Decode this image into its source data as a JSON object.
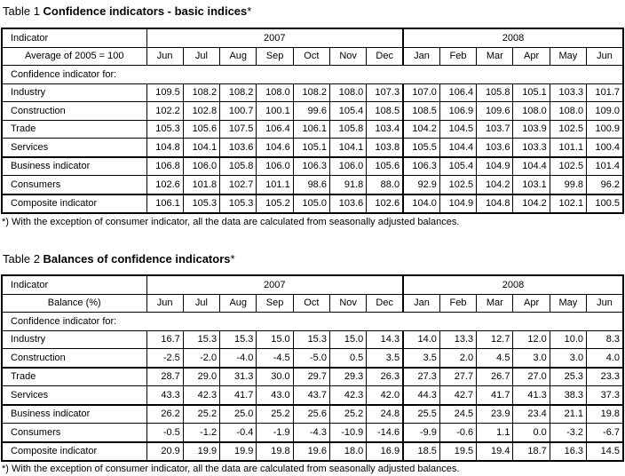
{
  "months": [
    "Jun",
    "Jul",
    "Aug",
    "Sep",
    "Oct",
    "Nov",
    "Dec",
    "Jan",
    "Feb",
    "Mar",
    "Apr",
    "May",
    "Jun"
  ],
  "years": [
    "2007",
    "2008"
  ],
  "table1": {
    "title_prefix": "Table 1 ",
    "title_bold": "Confidence indicators  - basic indices",
    "title_suffix": "*",
    "header_label": "Indicator",
    "sub_label": "Average of 2005 = 100",
    "group_label": "Confidence indicator for:",
    "rows": [
      {
        "label": "Industry",
        "values": [
          "109.5",
          "108.2",
          "108.2",
          "108.0",
          "108.2",
          "108.0",
          "107.3",
          "107.0",
          "106.4",
          "105.8",
          "105.1",
          "103.3",
          "101.7"
        ]
      },
      {
        "label": "Construction",
        "values": [
          "102.2",
          "102.8",
          "100.7",
          "100.1",
          "99.6",
          "105.4",
          "108.5",
          "108.5",
          "106.9",
          "109.6",
          "108.0",
          "108.0",
          "109.0"
        ]
      },
      {
        "label": "Trade",
        "values": [
          "105.3",
          "105.6",
          "107.5",
          "106.4",
          "106.1",
          "105.8",
          "103.4",
          "104.2",
          "104.5",
          "103.7",
          "103.9",
          "102.5",
          "100.9"
        ]
      },
      {
        "label": "Services",
        "values": [
          "104.8",
          "104.1",
          "103.6",
          "104.6",
          "105.1",
          "104.1",
          "103.8",
          "105.5",
          "104.4",
          "103.6",
          "103.3",
          "101.1",
          "100.4"
        ]
      },
      {
        "label": "Business indicator",
        "values": [
          "106.8",
          "106.0",
          "105.8",
          "106.0",
          "106.3",
          "106.0",
          "105.6",
          "106.3",
          "105.4",
          "104.9",
          "104.4",
          "102.5",
          "101.4"
        ]
      },
      {
        "label": "Consumers",
        "values": [
          "102.6",
          "101.8",
          "102.7",
          "101.1",
          "98.6",
          "91.8",
          "88.0",
          "92.9",
          "102.5",
          "104.2",
          "103.1",
          "99.8",
          "96.2"
        ]
      },
      {
        "label": "Composite indicator",
        "values": [
          "106.1",
          "105.3",
          "105.3",
          "105.2",
          "105.0",
          "103.6",
          "102.6",
          "104.0",
          "104.9",
          "104.8",
          "104.2",
          "102.1",
          "100.5"
        ]
      }
    ],
    "footnote": "*) With the exception of consumer indicator, all the data are calculated from seasonally adjusted balances."
  },
  "table2": {
    "title_prefix": "Table 2 ",
    "title_bold": "Balances of confidence indicators",
    "title_suffix": "*",
    "header_label": "Indicator",
    "sub_label": "Balance (%)",
    "group_label": "Confidence indicator for:",
    "rows": [
      {
        "label": "Industry",
        "values": [
          "16.7",
          "15.3",
          "15.3",
          "15.0",
          "15.3",
          "15.0",
          "14.3",
          "14.0",
          "13.3",
          "12.7",
          "12.0",
          "10.0",
          "8.3"
        ]
      },
      {
        "label": "Construction",
        "values": [
          "-2.5",
          "-2.0",
          "-4.0",
          "-4.5",
          "-5.0",
          "0.5",
          "3.5",
          "3.5",
          "2.0",
          "4.5",
          "3.0",
          "3.0",
          "4.0"
        ]
      },
      {
        "label": "Trade",
        "values": [
          "28.7",
          "29.0",
          "31.3",
          "30.0",
          "29.7",
          "29.3",
          "26.3",
          "27.3",
          "27.7",
          "26.7",
          "27.0",
          "25.3",
          "23.3"
        ]
      },
      {
        "label": "Services",
        "values": [
          "43.3",
          "42.3",
          "41.7",
          "43.0",
          "43.7",
          "42.3",
          "42.0",
          "44.3",
          "42.7",
          "41.7",
          "41.3",
          "38.3",
          "37.3"
        ]
      },
      {
        "label": "Business indicator",
        "values": [
          "26.2",
          "25.2",
          "25.0",
          "25.2",
          "25.6",
          "25.2",
          "24.8",
          "25.5",
          "24.5",
          "23.9",
          "23.4",
          "21.1",
          "19.8"
        ]
      },
      {
        "label": "Consumers",
        "values": [
          "-0.5",
          "-1.2",
          "-0.4",
          "-1.9",
          "-4.3",
          "-10.9",
          "-14.6",
          "-9.9",
          "-0.6",
          "1.1",
          "0.0",
          "-3.2",
          "-6.7"
        ]
      },
      {
        "label": "Composite indicator",
        "values": [
          "20.9",
          "19.9",
          "19.9",
          "19.8",
          "19.6",
          "18.0",
          "16.9",
          "18.5",
          "19.5",
          "19.4",
          "18.7",
          "16.3",
          "14.5"
        ]
      }
    ],
    "footnote": "*) With the exception of consumer indicator, all the data are calculated from seasonally adjusted balances."
  }
}
